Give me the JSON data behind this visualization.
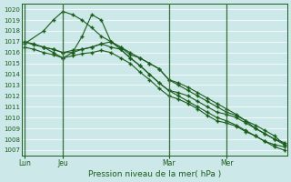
{
  "xlabel": "Pression niveau de la mer( hPa )",
  "background_color": "#cce8e8",
  "grid_color": "#ffffff",
  "line_color": "#1a5c1a",
  "ylim": [
    1006.5,
    1020.5
  ],
  "yticks": [
    1007,
    1008,
    1009,
    1010,
    1011,
    1012,
    1013,
    1014,
    1015,
    1016,
    1017,
    1018,
    1019,
    1020
  ],
  "xlim": [
    -0.3,
    27.3
  ],
  "xtick_positions": [
    0,
    4,
    15,
    21
  ],
  "xtick_labels": [
    "Lun",
    "Jeu",
    "Mar",
    "Mer"
  ],
  "vlines": [
    0,
    4,
    15,
    21
  ],
  "line1": {
    "x": [
      0,
      1,
      2,
      3,
      4,
      5,
      6,
      7,
      8,
      9,
      10,
      11,
      12,
      13,
      14,
      15,
      16,
      17,
      18,
      19,
      20,
      21,
      22,
      23,
      24,
      25,
      26,
      27
    ],
    "y": [
      1017.0,
      1016.8,
      1016.5,
      1016.3,
      1016.0,
      1016.2,
      1016.3,
      1016.5,
      1016.8,
      1016.5,
      1016.3,
      1015.5,
      1014.8,
      1014.0,
      1013.2,
      1012.5,
      1012.3,
      1012.0,
      1011.5,
      1011.0,
      1010.5,
      1010.3,
      1010.0,
      1009.5,
      1009.0,
      1008.5,
      1008.0,
      1007.7
    ]
  },
  "line2": {
    "x": [
      0,
      1,
      2,
      3,
      4,
      5,
      6,
      7,
      8,
      9,
      10,
      11,
      12,
      13,
      14,
      15,
      16,
      17,
      18,
      19,
      20,
      21,
      22,
      23,
      24,
      25,
      26,
      27
    ],
    "y": [
      1016.5,
      1016.3,
      1016.0,
      1015.8,
      1015.5,
      1015.7,
      1015.9,
      1016.0,
      1016.2,
      1016.0,
      1015.5,
      1015.0,
      1014.2,
      1013.5,
      1012.7,
      1012.0,
      1011.7,
      1011.3,
      1010.8,
      1010.2,
      1009.7,
      1009.5,
      1009.2,
      1008.7,
      1008.3,
      1007.8,
      1007.5,
      1007.3
    ]
  },
  "line3": {
    "x": [
      0,
      2,
      3,
      4,
      5,
      6,
      7,
      8,
      9,
      10,
      11,
      12,
      13,
      14,
      15,
      16,
      17,
      18,
      19,
      20,
      21,
      22,
      23,
      24,
      25,
      26,
      27
    ],
    "y": [
      1016.8,
      1018.0,
      1019.0,
      1019.8,
      1019.5,
      1019.0,
      1018.3,
      1017.5,
      1017.0,
      1016.5,
      1015.8,
      1015.5,
      1015.0,
      1014.5,
      1013.5,
      1013.0,
      1012.5,
      1012.0,
      1011.5,
      1011.0,
      1010.5,
      1010.2,
      1009.7,
      1009.3,
      1008.8,
      1008.3,
      1007.5
    ]
  },
  "line4": {
    "x": [
      0,
      1,
      2,
      3,
      4,
      5,
      6,
      7,
      8,
      9,
      10,
      11,
      12,
      13,
      14,
      15,
      16,
      17,
      18,
      19,
      20,
      21,
      22,
      23,
      24,
      25,
      26,
      27
    ],
    "y": [
      1017.0,
      1016.7,
      1016.5,
      1016.3,
      1016.0,
      1016.0,
      1016.3,
      1016.5,
      1016.8,
      1017.0,
      1016.3,
      1015.5,
      1014.8,
      1014.0,
      1013.2,
      1012.5,
      1012.0,
      1011.5,
      1011.0,
      1010.5,
      1010.0,
      1009.7,
      1009.3,
      1008.8,
      1008.3,
      1007.8,
      1007.3,
      1007.0
    ]
  },
  "line5": {
    "x": [
      2,
      3,
      4,
      5,
      6,
      7,
      8,
      9,
      10,
      11,
      12,
      13,
      14,
      15,
      16,
      17,
      18,
      19,
      20,
      21,
      22,
      23,
      24,
      25,
      26,
      27
    ],
    "y": [
      1016.5,
      1016.0,
      1015.5,
      1016.0,
      1017.5,
      1019.5,
      1019.0,
      1017.0,
      1016.5,
      1016.0,
      1015.5,
      1015.0,
      1014.5,
      1013.5,
      1013.2,
      1012.8,
      1012.3,
      1011.8,
      1011.3,
      1010.8,
      1010.3,
      1009.7,
      1009.0,
      1008.5,
      1008.0,
      1007.5
    ]
  }
}
